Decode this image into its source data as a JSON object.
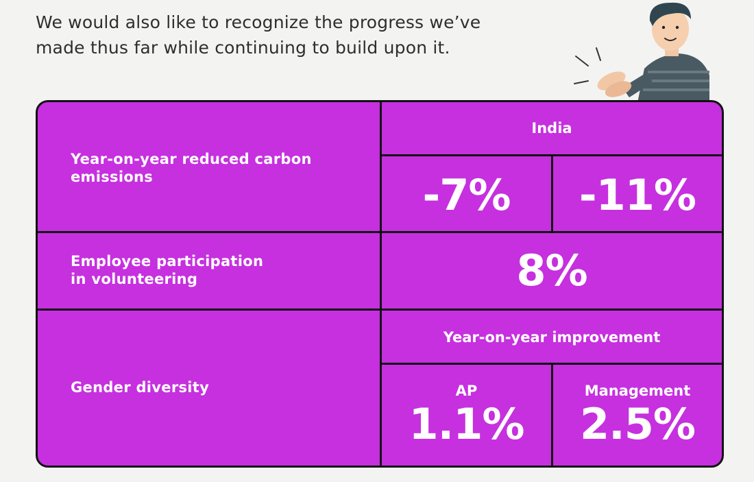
{
  "intro_text": "We would also like to recognize the progress we’ve made thus far while continuing to build upon it.",
  "colors": {
    "cell_bg": "#c630df",
    "border": "#111111",
    "text": "#ffffff",
    "page_bg": "#f3f3f1"
  },
  "table": {
    "rows": [
      {
        "label": "Year-on-year reduced carbon emissions",
        "header": "India",
        "values": [
          "-7%",
          "-11%"
        ]
      },
      {
        "label": "Employee participation in volunteering",
        "value": "8%"
      },
      {
        "label": "Gender diversity",
        "header": "Year-on-year improvement",
        "sub_labels": [
          "AP",
          "Management"
        ],
        "values": [
          "1.1%",
          "2.5%"
        ]
      }
    ]
  },
  "illustration": "man-clapping-icon"
}
